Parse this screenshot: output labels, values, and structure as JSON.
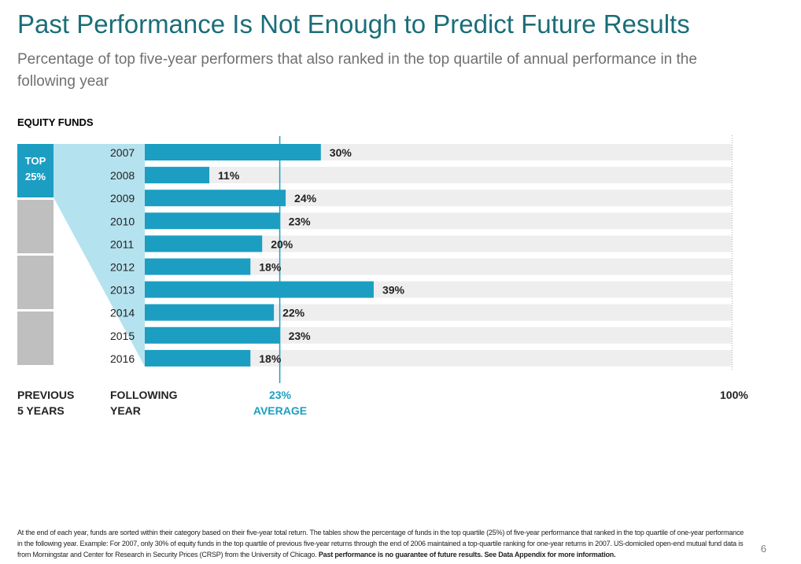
{
  "title": "Past Performance Is Not Enough to Predict Future Results",
  "subtitle": "Percentage of top five-year performers that also ranked in the top quartile of annual performance in the following year",
  "section_label": "EQUITY FUNDS",
  "quartile": {
    "top_label": "TOP",
    "top_value": "25%"
  },
  "labels": {
    "previous": "PREVIOUS",
    "previous_sub": "5 YEARS",
    "following": "FOLLOWING",
    "following_sub": "YEAR",
    "average_value": "23%",
    "average_text": "AVERAGE",
    "max": "100%"
  },
  "colors": {
    "title": "#1a6e78",
    "bar": "#1c9ec2",
    "track": "#eeeeef",
    "grey_block": "#bfbfbf",
    "wedge": "#b5e2ef",
    "average": "#1c9ec2"
  },
  "chart_data": {
    "type": "bar",
    "orientation": "horizontal",
    "title": "EQUITY FUNDS",
    "categories": [
      "2007",
      "2008",
      "2009",
      "2010",
      "2011",
      "2012",
      "2013",
      "2014",
      "2015",
      "2016"
    ],
    "values": [
      30,
      11,
      24,
      23,
      20,
      18,
      39,
      22,
      23,
      18
    ],
    "value_labels": [
      "30%",
      "11%",
      "24%",
      "23%",
      "20%",
      "18%",
      "39%",
      "22%",
      "23%",
      "18%"
    ],
    "xlim": [
      0,
      100
    ],
    "average": 23,
    "xlabel": "FOLLOWING YEAR",
    "unit": "%"
  },
  "footnote": {
    "text": "At the end of each year, funds are sorted within their category based on their five-year total return. The tables show the percentage of funds in the top quartile (25%) of five-year performance that ranked in the top quartile of one-year performance in the following year. Example: For 2007, only 30% of equity funds in the top quartile of previous five-year returns through the end of 2006 maintained a top-quartile ranking for one-year returns in 2007. US-domiciled open-end mutual fund data is from Morningstar and Center for Research in Security Prices (CRSP) from the University of Chicago. ",
    "bold": "Past performance is no guarantee of future results. See Data Appendix for more information."
  },
  "page_number": "6"
}
